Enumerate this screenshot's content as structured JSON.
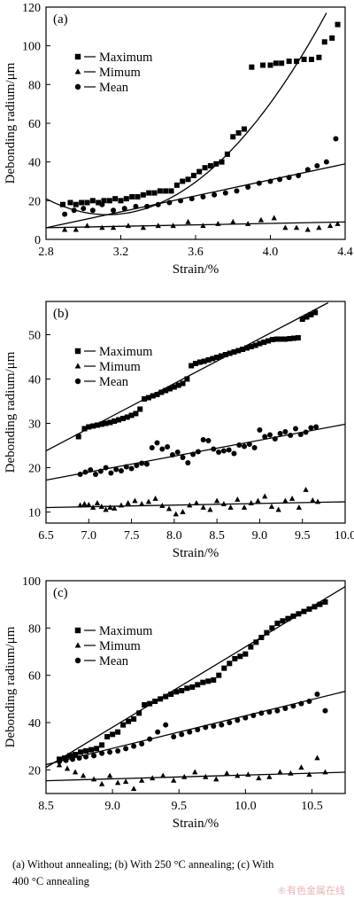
{
  "caption": {
    "line1": "(a) Without annealing; (b) With 250 °C annealing; (c) With",
    "line2": "400 °C annealing"
  },
  "watermark": "®有色金属在线",
  "chart_data": [
    {
      "type": "scatter",
      "panel_label": "(a)",
      "xlabel": "Strain/%",
      "ylabel": "Debonding radium/μm",
      "xlim": [
        2.8,
        4.4
      ],
      "ylim": [
        0,
        120
      ],
      "xticks": [
        2.8,
        3.2,
        3.6,
        4.0,
        4.4
      ],
      "xtick_labels": [
        "2.8",
        "3.2",
        "3.6",
        "4.0",
        "4.4"
      ],
      "yticks": [
        0,
        20,
        40,
        60,
        80,
        100,
        120
      ],
      "ytick_labels": [
        "0",
        "20",
        "40",
        "60",
        "80",
        "100",
        "120"
      ],
      "legend_position": "top-left",
      "grid": false,
      "series": [
        {
          "name": "Maximum",
          "marker": "square",
          "x": [
            2.89,
            2.93,
            2.96,
            2.99,
            3.02,
            3.05,
            3.08,
            3.11,
            3.14,
            3.17,
            3.2,
            3.23,
            3.26,
            3.29,
            3.32,
            3.35,
            3.38,
            3.41,
            3.44,
            3.47,
            3.5,
            3.53,
            3.56,
            3.59,
            3.62,
            3.65,
            3.68,
            3.71,
            3.74,
            3.77,
            3.8,
            3.83,
            3.86,
            3.9,
            3.96,
            4.0,
            4.03,
            4.06,
            4.1,
            4.14,
            4.18,
            4.22,
            4.26,
            4.29,
            4.33,
            4.36
          ],
          "y": [
            18,
            19,
            18,
            19,
            19,
            20,
            19,
            20,
            20,
            21,
            20,
            21,
            22,
            22,
            23,
            24,
            24,
            25,
            25,
            25,
            28,
            30,
            31,
            33,
            35,
            37,
            38,
            39,
            40,
            44,
            53,
            55,
            57,
            89,
            90,
            90,
            91,
            91,
            92,
            92,
            93,
            93,
            94,
            102,
            104,
            111
          ],
          "fit": {
            "kind": "quadratic",
            "x": [
              2.8,
              3.3,
              3.8,
              4.3
            ],
            "y": [
              21,
              23,
              47,
              117
            ]
          }
        },
        {
          "name": "Mimum",
          "marker": "triangle",
          "x": [
            2.9,
            2.96,
            3.02,
            3.1,
            3.16,
            3.24,
            3.32,
            3.4,
            3.48,
            3.56,
            3.64,
            3.72,
            3.8,
            3.88,
            3.95,
            4.02,
            4.08,
            4.14,
            4.2,
            4.26,
            4.32,
            4.36
          ],
          "y": [
            5,
            5,
            7,
            6,
            6,
            7,
            6,
            7,
            7,
            9,
            7,
            8,
            9,
            8,
            10,
            11,
            6,
            6,
            5,
            6,
            7,
            8
          ],
          "fit": {
            "kind": "linear",
            "x": [
              2.8,
              4.4
            ],
            "y": [
              6,
              9
            ]
          }
        },
        {
          "name": "Mean",
          "marker": "circle",
          "x": [
            2.9,
            2.95,
            3.0,
            3.05,
            3.1,
            3.16,
            3.22,
            3.28,
            3.34,
            3.4,
            3.46,
            3.52,
            3.58,
            3.64,
            3.7,
            3.76,
            3.82,
            3.88,
            3.94,
            4.0,
            4.05,
            4.1,
            4.15,
            4.2,
            4.25,
            4.3,
            4.35
          ],
          "y": [
            13,
            15,
            16,
            15,
            18,
            15,
            16,
            17,
            17,
            18,
            19,
            20,
            21,
            22,
            23,
            24,
            25,
            27,
            29,
            30,
            31,
            32,
            33,
            36,
            38,
            40,
            52
          ],
          "fit": {
            "kind": "linear",
            "x": [
              2.8,
              4.4
            ],
            "y": [
              6,
              39
            ]
          }
        }
      ]
    },
    {
      "type": "scatter",
      "panel_label": "(b)",
      "xlabel": "Strain/%",
      "ylabel": "Debonding radium/μm",
      "xlim": [
        6.5,
        10.0
      ],
      "ylim": [
        7.5,
        57.5
      ],
      "xticks": [
        6.5,
        7.0,
        7.5,
        8.0,
        8.5,
        9.0,
        9.5,
        10.0
      ],
      "xtick_labels": [
        "6.5",
        "7.0",
        "7.5",
        "8.0",
        "8.5",
        "9.0",
        "9.5",
        "10.0"
      ],
      "yticks": [
        10,
        20,
        30,
        40,
        50
      ],
      "ytick_labels": [
        "10",
        "20",
        "30",
        "40",
        "50"
      ],
      "legend_position": "top-left",
      "grid": false,
      "series": [
        {
          "name": "Maximum",
          "marker": "square",
          "x": [
            6.88,
            6.95,
            7.0,
            7.05,
            7.1,
            7.15,
            7.2,
            7.25,
            7.3,
            7.35,
            7.4,
            7.45,
            7.5,
            7.55,
            7.6,
            7.65,
            7.7,
            7.75,
            7.8,
            7.85,
            7.9,
            7.95,
            8.0,
            8.05,
            8.1,
            8.15,
            8.2,
            8.25,
            8.3,
            8.35,
            8.4,
            8.45,
            8.5,
            8.55,
            8.6,
            8.65,
            8.7,
            8.75,
            8.8,
            8.85,
            8.9,
            8.95,
            9.0,
            9.05,
            9.1,
            9.15,
            9.2,
            9.25,
            9.3,
            9.35,
            9.4,
            9.45,
            9.5,
            9.55,
            9.6,
            9.65
          ],
          "y": [
            27,
            28.8,
            29.2,
            29.4,
            29.6,
            29.8,
            30,
            30.2,
            30.5,
            30.8,
            31.1,
            31.4,
            31.8,
            32.2,
            33.2,
            35.5,
            35.8,
            36.2,
            36.5,
            37,
            37.4,
            37.8,
            38.2,
            38.6,
            39,
            40,
            43,
            43.5,
            43.8,
            44,
            44.3,
            44.6,
            44.9,
            45.2,
            45.5,
            45.8,
            46.1,
            46.4,
            46.7,
            47,
            47.3,
            47.6,
            48,
            48.3,
            48.6,
            48.9,
            49,
            49,
            49,
            49.1,
            49.2,
            49.3,
            53.5,
            54,
            54.5,
            55
          ],
          "fit": {
            "kind": "linear",
            "x": [
              6.5,
              9.8
            ],
            "y": [
              23.8,
              57.2
            ]
          }
        },
        {
          "name": "Mimum",
          "marker": "triangle",
          "x": [
            6.9,
            6.95,
            7.0,
            7.05,
            7.1,
            7.15,
            7.2,
            7.25,
            7.3,
            7.38,
            7.46,
            7.54,
            7.62,
            7.7,
            7.78,
            7.86,
            7.94,
            8.02,
            8.1,
            8.18,
            8.26,
            8.34,
            8.42,
            8.5,
            8.58,
            8.66,
            8.74,
            8.82,
            8.9,
            8.98,
            9.06,
            9.14,
            9.22,
            9.3,
            9.38,
            9.46,
            9.54,
            9.62,
            9.68
          ],
          "y": [
            11.5,
            11.8,
            11.6,
            11,
            12,
            11.2,
            10.5,
            11,
            10.8,
            11.5,
            12,
            12.5,
            11.8,
            12.3,
            13,
            11.4,
            10.7,
            9.5,
            10,
            11.5,
            12,
            11,
            10.5,
            12.5,
            11.8,
            11,
            12.8,
            11,
            12,
            12.5,
            13.5,
            11.2,
            10.5,
            12.5,
            13,
            11,
            15,
            12.6,
            12.3
          ],
          "fit": {
            "kind": "linear",
            "x": [
              6.5,
              10.0
            ],
            "y": [
              11,
              12.3
            ]
          }
        },
        {
          "name": "Mean",
          "marker": "circle",
          "x": [
            6.9,
            6.96,
            7.02,
            7.08,
            7.14,
            7.2,
            7.26,
            7.32,
            7.38,
            7.44,
            7.5,
            7.56,
            7.62,
            7.68,
            7.74,
            7.8,
            7.86,
            7.92,
            7.98,
            8.04,
            8.1,
            8.16,
            8.22,
            8.28,
            8.34,
            8.4,
            8.46,
            8.52,
            8.58,
            8.64,
            8.7,
            8.76,
            8.82,
            8.88,
            8.94,
            9.0,
            9.06,
            9.12,
            9.18,
            9.24,
            9.3,
            9.36,
            9.42,
            9.48,
            9.54,
            9.6,
            9.66
          ],
          "y": [
            18.5,
            19,
            19.5,
            18.5,
            19.2,
            20,
            18.8,
            19.6,
            19.3,
            20.2,
            19.8,
            20.5,
            21,
            20.8,
            24.5,
            25.6,
            24.2,
            24.7,
            22.9,
            23.5,
            22.3,
            21.1,
            23,
            23.6,
            26.3,
            26.1,
            24.2,
            23.5,
            23.8,
            24,
            23.2,
            25.1,
            24.8,
            25.3,
            24.5,
            28.5,
            27,
            27.4,
            26.5,
            27.7,
            28.1,
            27.3,
            28.8,
            27.5,
            28,
            29,
            29.2
          ],
          "fit": {
            "kind": "linear",
            "x": [
              6.5,
              10.0
            ],
            "y": [
              17.2,
              29.8
            ]
          }
        }
      ]
    },
    {
      "type": "scatter",
      "panel_label": "(c)",
      "xlabel": "Strain/%",
      "ylabel": "Debonding radium/μm",
      "xlim": [
        8.5,
        10.75
      ],
      "ylim": [
        10,
        100
      ],
      "xticks": [
        8.5,
        9.0,
        9.5,
        10.0,
        10.5
      ],
      "xtick_labels": [
        "8.5",
        "9.0",
        "9.5",
        "10.0",
        "10.5"
      ],
      "yticks": [
        20,
        40,
        60,
        80,
        100
      ],
      "ytick_labels": [
        "20",
        "40",
        "60",
        "80",
        "100"
      ],
      "legend_position": "top-left",
      "grid": false,
      "series": [
        {
          "name": "Maximum",
          "marker": "square",
          "x": [
            8.6,
            8.64,
            8.68,
            8.72,
            8.76,
            8.8,
            8.84,
            8.88,
            8.92,
            8.96,
            9.0,
            9.04,
            9.08,
            9.12,
            9.16,
            9.2,
            9.24,
            9.28,
            9.32,
            9.36,
            9.4,
            9.44,
            9.48,
            9.52,
            9.56,
            9.6,
            9.64,
            9.68,
            9.72,
            9.76,
            9.8,
            9.84,
            9.88,
            9.92,
            9.96,
            10.0,
            10.04,
            10.08,
            10.12,
            10.16,
            10.2,
            10.24,
            10.28,
            10.32,
            10.36,
            10.4,
            10.44,
            10.48,
            10.52,
            10.56,
            10.6
          ],
          "y": [
            24.5,
            25,
            26,
            26.5,
            27.5,
            28,
            28.5,
            29,
            30.5,
            34,
            35,
            36,
            39,
            40.5,
            41.5,
            44,
            47.5,
            48,
            49,
            50,
            51,
            52,
            53,
            53.5,
            54.5,
            55,
            56,
            57,
            57.5,
            58,
            60,
            63,
            65,
            67,
            68,
            69,
            72,
            74,
            76,
            78,
            80,
            82,
            83,
            84,
            85,
            86,
            87,
            88,
            89,
            90,
            91
          ],
          "fit": {
            "kind": "linear",
            "x": [
              8.5,
              10.75
            ],
            "y": [
              21,
              97.5
            ]
          }
        },
        {
          "name": "Mimum",
          "marker": "triangle",
          "x": [
            8.6,
            8.66,
            8.72,
            8.78,
            8.86,
            8.92,
            8.98,
            9.04,
            9.1,
            9.16,
            9.22,
            9.3,
            9.38,
            9.46,
            9.54,
            9.62,
            9.7,
            9.78,
            9.86,
            9.94,
            10.02,
            10.1,
            10.18,
            10.26,
            10.34,
            10.42,
            10.48,
            10.54,
            10.6
          ],
          "y": [
            22,
            20.5,
            19,
            17.5,
            16,
            14,
            17.5,
            14.5,
            15,
            12,
            15.5,
            16.5,
            17.5,
            15.5,
            17,
            19,
            17,
            16,
            18.5,
            17.5,
            18,
            16.5,
            17,
            19,
            18.5,
            21,
            18,
            25,
            19
          ],
          "fit": {
            "kind": "linear",
            "x": [
              8.5,
              10.75
            ],
            "y": [
              15.4,
              19
            ]
          }
        },
        {
          "name": "Mean",
          "marker": "circle",
          "x": [
            8.6,
            8.65,
            8.7,
            8.75,
            8.8,
            8.86,
            8.92,
            8.98,
            9.04,
            9.1,
            9.16,
            9.22,
            9.28,
            9.34,
            9.4,
            9.46,
            9.52,
            9.58,
            9.64,
            9.7,
            9.76,
            9.82,
            9.88,
            9.94,
            10.0,
            10.06,
            10.12,
            10.18,
            10.24,
            10.3,
            10.36,
            10.42,
            10.48,
            10.54,
            10.6
          ],
          "y": [
            23.5,
            24,
            24.5,
            25,
            25.5,
            26,
            27,
            27.5,
            28,
            29,
            30,
            31,
            33,
            36,
            39,
            34,
            35,
            36,
            37,
            38,
            38.5,
            39,
            40,
            41,
            42,
            43,
            44,
            44.5,
            45,
            46,
            47,
            48,
            49,
            52,
            45
          ],
          "fit": {
            "kind": "linear",
            "x": [
              8.5,
              10.75
            ],
            "y": [
              22.2,
              53.2
            ]
          }
        }
      ]
    }
  ]
}
